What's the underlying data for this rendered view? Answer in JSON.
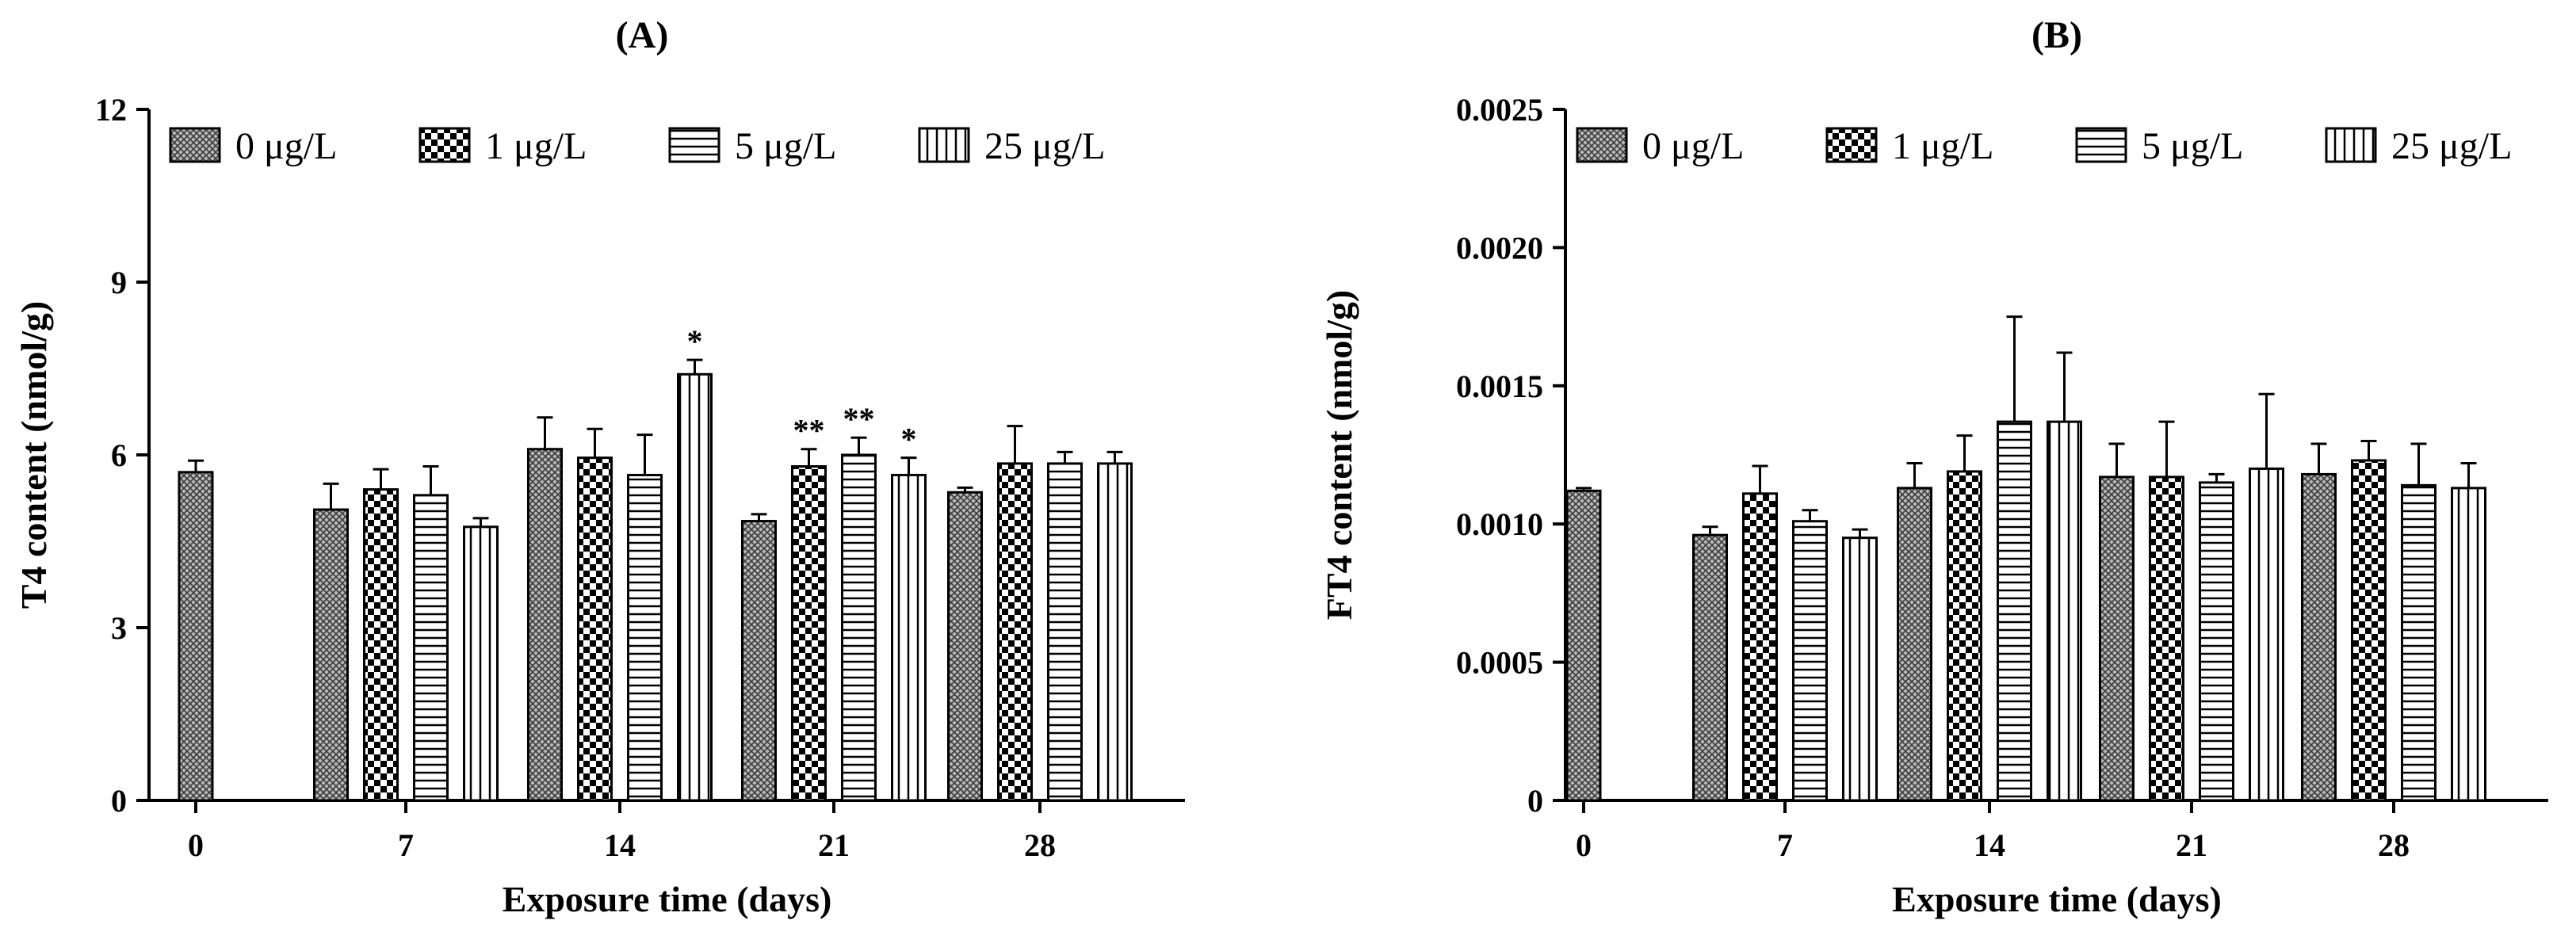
{
  "chart_data": [
    {
      "type": "bar",
      "panel": "(A)",
      "title": "",
      "xlabel": "Exposure time (days)",
      "ylabel": "T4 content (nmol/g)",
      "ylim": [
        0,
        12
      ],
      "yticks": [
        0,
        3,
        6,
        9,
        12
      ],
      "ytick_labels": [
        "0",
        "3",
        "6",
        "9",
        "12"
      ],
      "categories": [
        "0",
        "7",
        "14",
        "21",
        "28"
      ],
      "legend_position": "top",
      "grid": false,
      "series": [
        {
          "name": "0 μg/L",
          "pattern": "crosshatch",
          "values": [
            5.7,
            5.05,
            6.1,
            4.85,
            5.35
          ],
          "errors": [
            0.2,
            0.45,
            0.55,
            0.12,
            0.08
          ],
          "annotations": [
            "",
            "",
            "",
            "",
            ""
          ]
        },
        {
          "name": "1 μg/L",
          "pattern": "checker",
          "values": [
            null,
            5.4,
            5.95,
            5.8,
            5.85
          ],
          "errors": [
            null,
            0.35,
            0.5,
            0.3,
            0.65
          ],
          "annotations": [
            "",
            "",
            "",
            "**",
            ""
          ]
        },
        {
          "name": "5 μg/L",
          "pattern": "hlines",
          "values": [
            null,
            5.3,
            5.65,
            6.0,
            5.85
          ],
          "errors": [
            null,
            0.5,
            0.7,
            0.3,
            0.2
          ],
          "annotations": [
            "",
            "",
            "",
            "**",
            ""
          ]
        },
        {
          "name": "25 μg/L",
          "pattern": "vlines",
          "values": [
            null,
            4.75,
            7.4,
            5.65,
            5.85
          ],
          "errors": [
            null,
            0.15,
            0.25,
            0.3,
            0.2
          ],
          "annotations": [
            "",
            "",
            "*",
            "*",
            ""
          ]
        }
      ]
    },
    {
      "type": "bar",
      "panel": "(B)",
      "title": "",
      "xlabel": "Exposure time (days)",
      "ylabel": "FT4 content (nmol/g)",
      "ylim": [
        0,
        0.0025
      ],
      "yticks": [
        0,
        0.0005,
        0.001,
        0.0015,
        0.002,
        0.0025
      ],
      "ytick_labels": [
        "0",
        "0.0005",
        "0.0010",
        "0.0015",
        "0.0020",
        "0.0025"
      ],
      "categories": [
        "0",
        "7",
        "14",
        "21",
        "28"
      ],
      "legend_position": "top",
      "grid": false,
      "series": [
        {
          "name": "0 μg/L",
          "pattern": "crosshatch",
          "values": [
            0.00112,
            0.00096,
            0.00113,
            0.00117,
            0.00118
          ],
          "errors": [
            1e-05,
            3e-05,
            9e-05,
            0.00012,
            0.00011
          ],
          "annotations": [
            "",
            "",
            "",
            "",
            ""
          ]
        },
        {
          "name": "1 μg/L",
          "pattern": "checker",
          "values": [
            null,
            0.00111,
            0.00119,
            0.00117,
            0.00123
          ],
          "errors": [
            null,
            0.0001,
            0.00013,
            0.0002,
            7e-05
          ],
          "annotations": [
            "",
            "",
            "",
            "",
            ""
          ]
        },
        {
          "name": "5 μg/L",
          "pattern": "hlines",
          "values": [
            null,
            0.00101,
            0.00137,
            0.00115,
            0.00114
          ],
          "errors": [
            null,
            4e-05,
            0.00038,
            3e-05,
            0.00015
          ],
          "annotations": [
            "",
            "",
            "",
            "",
            ""
          ]
        },
        {
          "name": "25 μg/L",
          "pattern": "vlines",
          "values": [
            null,
            0.00095,
            0.00137,
            0.0012,
            0.00113
          ],
          "errors": [
            null,
            3e-05,
            0.00025,
            0.00027,
            9e-05
          ],
          "annotations": [
            "",
            "",
            "",
            "",
            ""
          ]
        }
      ]
    }
  ]
}
